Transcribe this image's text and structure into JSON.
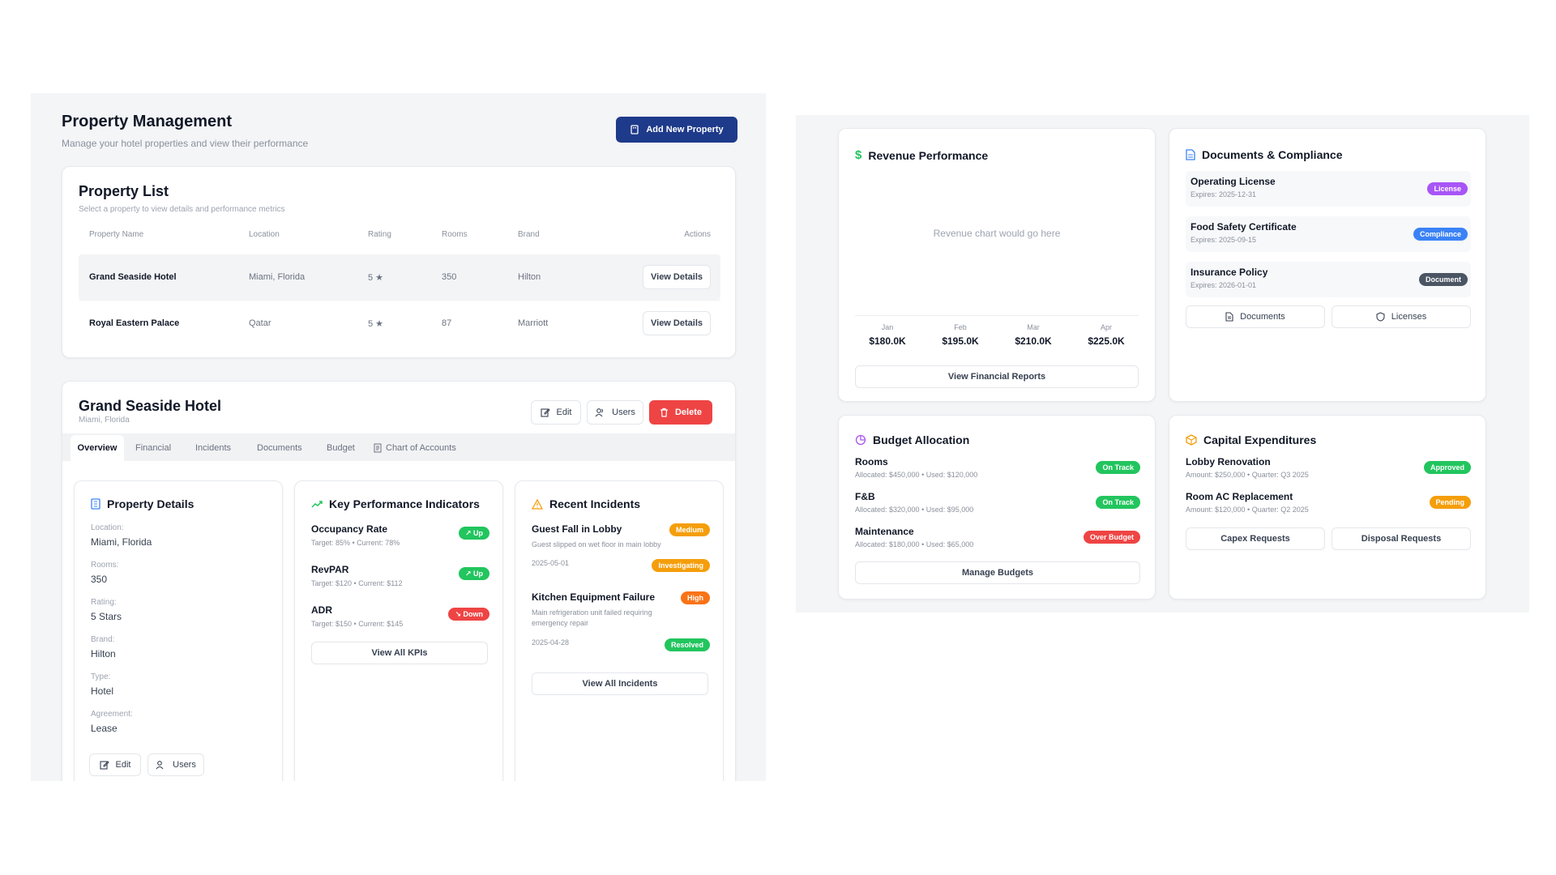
{
  "header": {
    "title": "Property Management",
    "subtitle": "Manage your hotel properties and view their performance",
    "add_button": "Add New Property"
  },
  "property_list": {
    "title": "Property List",
    "subtitle": "Select a property to view details and performance metrics",
    "columns": [
      "Property Name",
      "Location",
      "Rating",
      "Rooms",
      "Brand",
      "Actions"
    ],
    "rows": [
      {
        "name": "Grand Seaside Hotel",
        "location": "Miami, Florida",
        "rating": "5 ★",
        "rooms": "350",
        "brand": "Hilton",
        "action": "View Details"
      },
      {
        "name": "Royal Eastern Palace",
        "location": "Qatar",
        "rating": "5 ★",
        "rooms": "87",
        "brand": "Marriott",
        "action": "View Details"
      }
    ]
  },
  "selected": {
    "name": "Grand Seaside Hotel",
    "location": "Miami, Florida",
    "edit": "Edit",
    "users": "Users",
    "delete": "Delete",
    "tabs": [
      "Overview",
      "Financial",
      "Incidents",
      "Documents",
      "Budget",
      "Chart of Accounts"
    ]
  },
  "property_details": {
    "title": "Property Details",
    "fields": [
      {
        "label": "Location:",
        "value": "Miami, Florida"
      },
      {
        "label": "Rooms:",
        "value": "350"
      },
      {
        "label": "Rating:",
        "value": "5 Stars"
      },
      {
        "label": "Brand:",
        "value": "Hilton"
      },
      {
        "label": "Type:",
        "value": "Hotel"
      },
      {
        "label": "Agreement:",
        "value": "Lease"
      }
    ],
    "edit": "Edit",
    "users": "Users"
  },
  "kpis": {
    "title": "Key Performance Indicators",
    "items": [
      {
        "name": "Occupancy Rate",
        "detail": "Target: 85%  •  Current: 78%",
        "trend": "Up"
      },
      {
        "name": "RevPAR",
        "detail": "Target: $120  •  Current: $112",
        "trend": "Up"
      },
      {
        "name": "ADR",
        "detail": "Target: $150  •  Current: $145",
        "trend": "Down"
      }
    ],
    "button": "View All KPIs"
  },
  "incidents": {
    "title": "Recent Incidents",
    "items": [
      {
        "title": "Guest Fall in Lobby",
        "desc": "Guest slipped on wet floor in main lobby",
        "date": "2025-05-01",
        "severity": "Medium",
        "status": "Investigating"
      },
      {
        "title": "Kitchen Equipment Failure",
        "desc": "Main refrigeration unit failed requiring emergency repair",
        "date": "2025-04-28",
        "severity": "High",
        "status": "Resolved"
      }
    ],
    "button": "View All Incidents"
  },
  "revenue": {
    "title": "Revenue Performance",
    "placeholder": "Revenue chart would go here",
    "months": [
      {
        "m": "Jan",
        "v": "$180.0K"
      },
      {
        "m": "Feb",
        "v": "$195.0K"
      },
      {
        "m": "Mar",
        "v": "$210.0K"
      },
      {
        "m": "Apr",
        "v": "$225.0K"
      }
    ],
    "button": "View Financial Reports"
  },
  "documents": {
    "title": "Documents & Compliance",
    "items": [
      {
        "name": "Operating License",
        "expires": "Expires: 2025-12-31",
        "tag": "License"
      },
      {
        "name": "Food Safety Certificate",
        "expires": "Expires: 2025-09-15",
        "tag": "Compliance"
      },
      {
        "name": "Insurance Policy",
        "expires": "Expires: 2026-01-01",
        "tag": "Document"
      }
    ],
    "btn_documents": "Documents",
    "btn_licenses": "Licenses"
  },
  "budget": {
    "title": "Budget Allocation",
    "items": [
      {
        "name": "Rooms",
        "detail": "Allocated: $450,000 • Used: $120,000",
        "status": "On Track"
      },
      {
        "name": "F&B",
        "detail": "Allocated: $320,000 • Used: $95,000",
        "status": "On Track"
      },
      {
        "name": "Maintenance",
        "detail": "Allocated: $180,000 • Used: $65,000",
        "status": "Over Budget"
      }
    ],
    "button": "Manage Budgets"
  },
  "capex": {
    "title": "Capital Expenditures",
    "items": [
      {
        "name": "Lobby Renovation",
        "detail": "Amount: $250,000 • Quarter: Q3 2025",
        "status": "Approved"
      },
      {
        "name": "Room AC Replacement",
        "detail": "Amount: $120,000 • Quarter: Q2 2025",
        "status": "Pending"
      }
    ],
    "btn_capex": "Capex Requests",
    "btn_disposal": "Disposal Requests"
  },
  "colors": {
    "primary": "#1e3a8a",
    "danger": "#ef4444",
    "green": "#22c55e",
    "orange": "#f59e0b",
    "purple": "#a855f7",
    "blue": "#3b82f6",
    "gray": "#4b5563"
  }
}
